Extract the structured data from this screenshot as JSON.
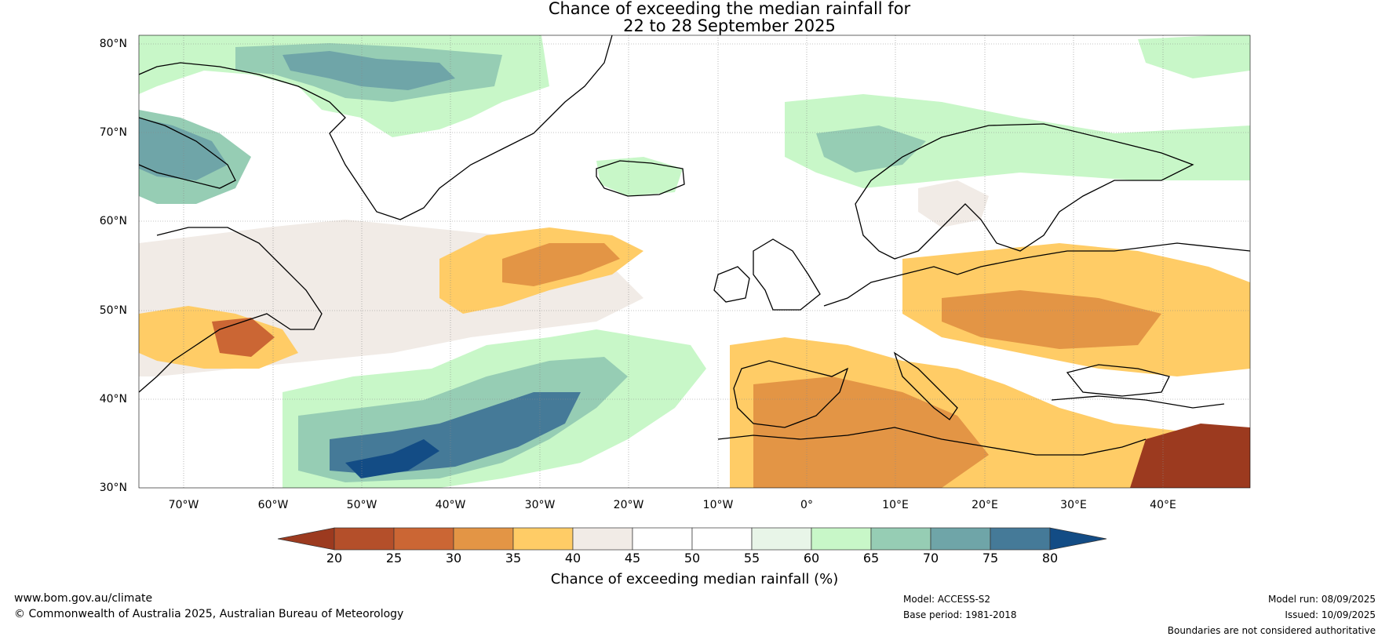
{
  "title_line1": "Chance of exceeding the median rainfall for",
  "title_line2": "22 to 28 September 2025",
  "lat_labels": [
    "80°N",
    "70°N",
    "60°N",
    "50°N",
    "40°N",
    "30°N"
  ],
  "lon_labels": [
    "70°W",
    "60°W",
    "50°W",
    "40°W",
    "30°W",
    "20°W",
    "10°W",
    "0°",
    "10°E",
    "20°E",
    "30°E",
    "40°E"
  ],
  "colorbar": {
    "label": "Chance of exceeding median rainfall (%)",
    "ticks": [
      "20",
      "25",
      "30",
      "35",
      "40",
      "45",
      "50",
      "55",
      "60",
      "65",
      "70",
      "75",
      "80"
    ],
    "colors": [
      "#9c3a1f",
      "#b44f2a",
      "#cb6634",
      "#e39545",
      "#ffcc66",
      "#f1ebe6",
      "#ffffff",
      "#ffffff",
      "#e8f5e8",
      "#c8f7c8",
      "#96cdb4",
      "#6fa5a8",
      "#457a98",
      "#134c85"
    ]
  },
  "footer": {
    "website": "www.bom.gov.au/climate",
    "copyright": "© Commonwealth of Australia 2025, Australian Bureau of Meteorology",
    "model": "Model: ACCESS-S2",
    "base_period": "Base period: 1981-2018",
    "model_run": "Model run: 08/09/2025",
    "issued": "Issued: 10/09/2025",
    "disclaimer": "Boundaries are not considered authoritative"
  }
}
